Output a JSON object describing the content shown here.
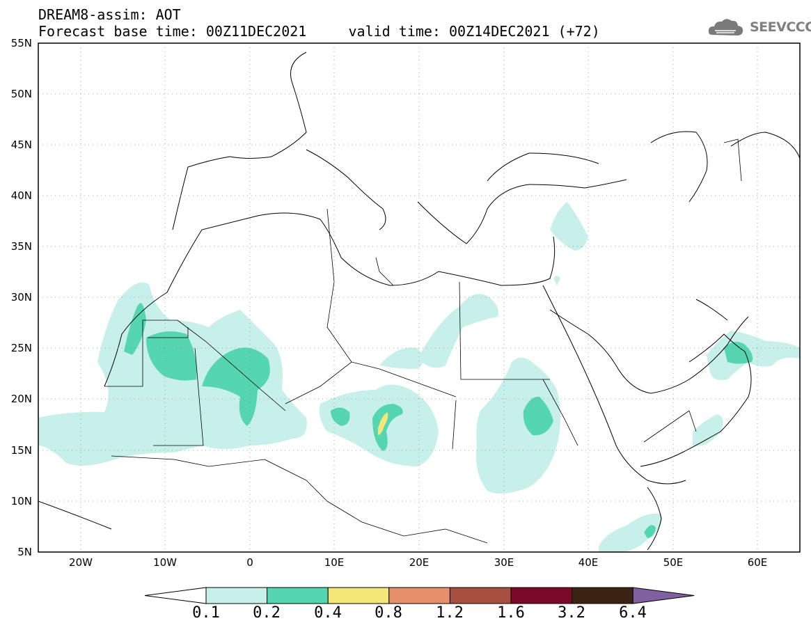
{
  "header": {
    "title_line1": "DREAM8-assim: AOT",
    "title_line2": "Forecast base time: 00Z11DEC2021     valid time: 00Z14DEC2021 (+72)"
  },
  "logo": {
    "text": "SEEVCCC",
    "icon": "cloud-icon"
  },
  "map": {
    "lon_range": [
      -25,
      65
    ],
    "lat_range": [
      5,
      55
    ],
    "lat_labels": [
      "55N",
      "50N",
      "45N",
      "40N",
      "35N",
      "30N",
      "25N",
      "20N",
      "15N",
      "10N",
      "5N"
    ],
    "lon_labels": [
      "20W",
      "10W",
      "0",
      "10E",
      "20E",
      "30E",
      "40E",
      "50E",
      "60E"
    ],
    "grid": "dotted"
  },
  "colorbar": {
    "levels": [
      "0.1",
      "0.2",
      "0.4",
      "0.8",
      "1.2",
      "1.6",
      "3.2",
      "6.4"
    ],
    "colors": [
      "#c8f0ea",
      "#55d6b0",
      "#f5e67a",
      "#e8906a",
      "#a85040",
      "#7a0a28",
      "#3c2414",
      "#8060a0"
    ],
    "under_color": "#ffffff"
  }
}
